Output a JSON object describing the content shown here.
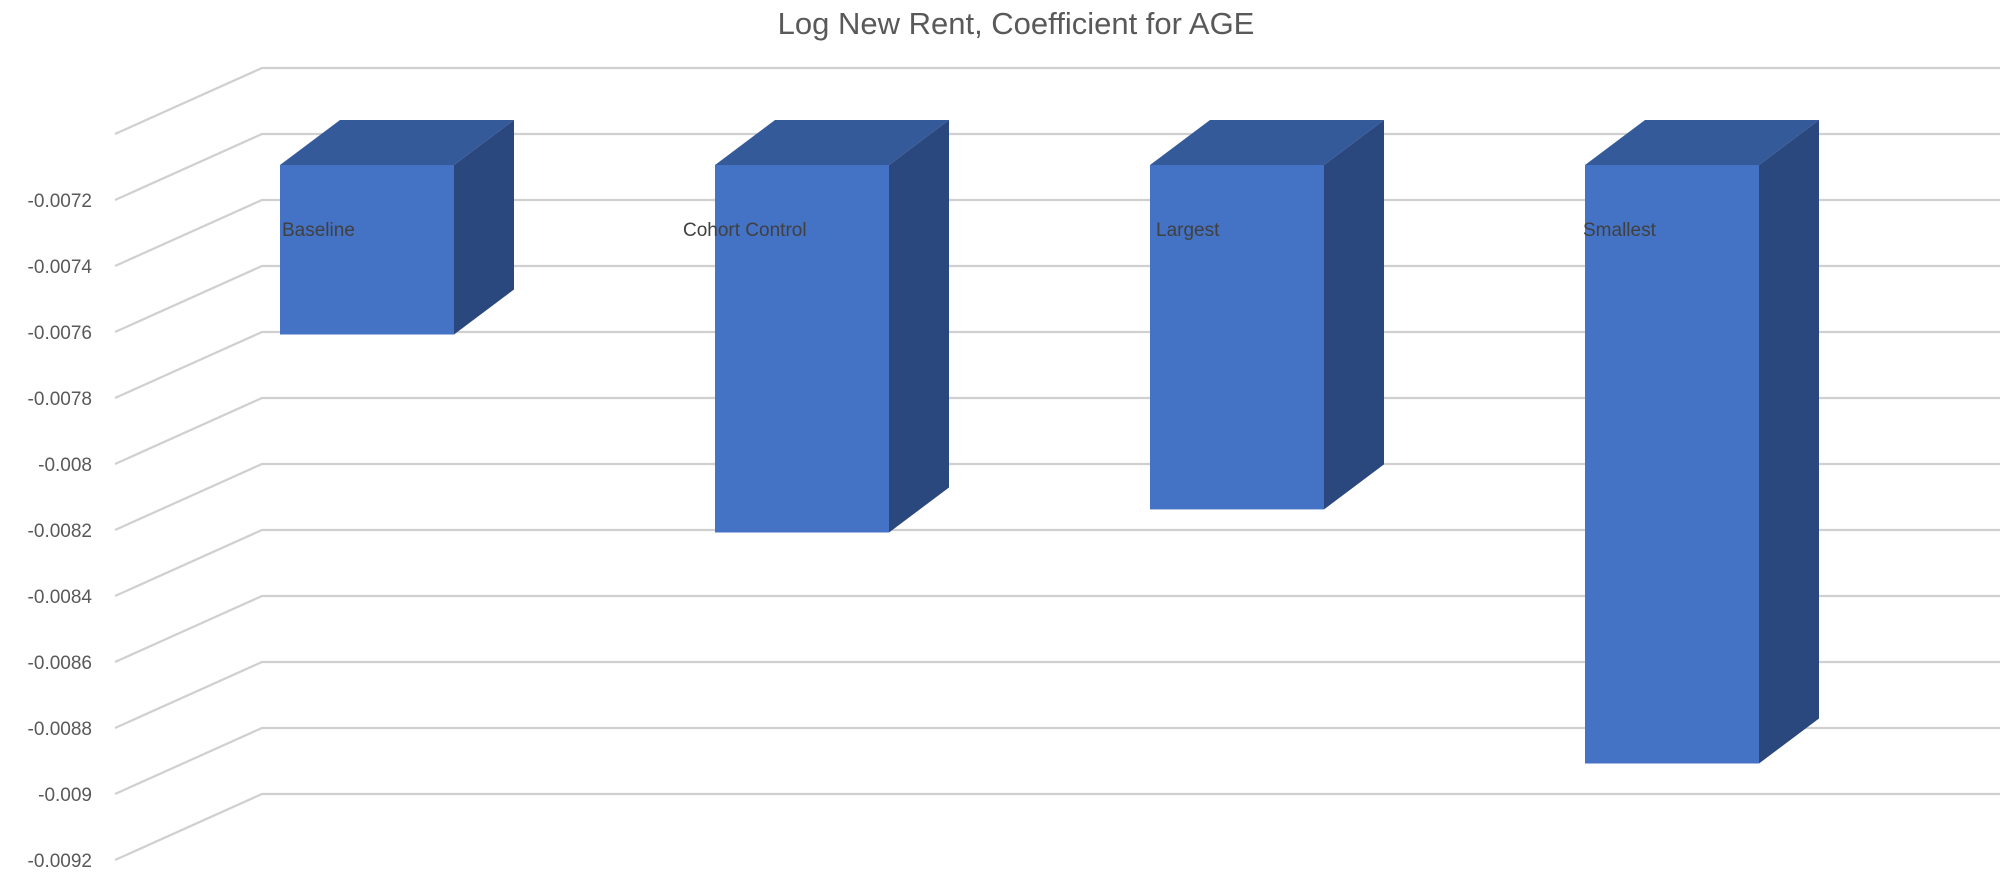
{
  "chart_data": {
    "type": "bar",
    "title": "Log New Rent, Coefficient for AGE",
    "xlabel": "",
    "ylabel": "",
    "categories": [
      "Baseline",
      "Cohort Control",
      "Largest",
      "Smallest"
    ],
    "values": [
      -0.00775,
      -0.00835,
      -0.00828,
      -0.00905
    ],
    "ylim": [
      -0.0092,
      -0.007
    ],
    "yticks": [
      "-0.0072",
      "-0.0074",
      "-0.0076",
      "-0.0078",
      "-0.008",
      "-0.0082",
      "-0.0084",
      "-0.0086",
      "-0.0088",
      "-0.009",
      "-0.0092"
    ],
    "grid": true,
    "legend": "none",
    "style": "3d-column",
    "colors": {
      "bar_front": "#4472C4",
      "bar_top": "#355A9A",
      "bar_side": "#2A477E",
      "grid": "#D0D0D0",
      "text": "#595959"
    }
  }
}
